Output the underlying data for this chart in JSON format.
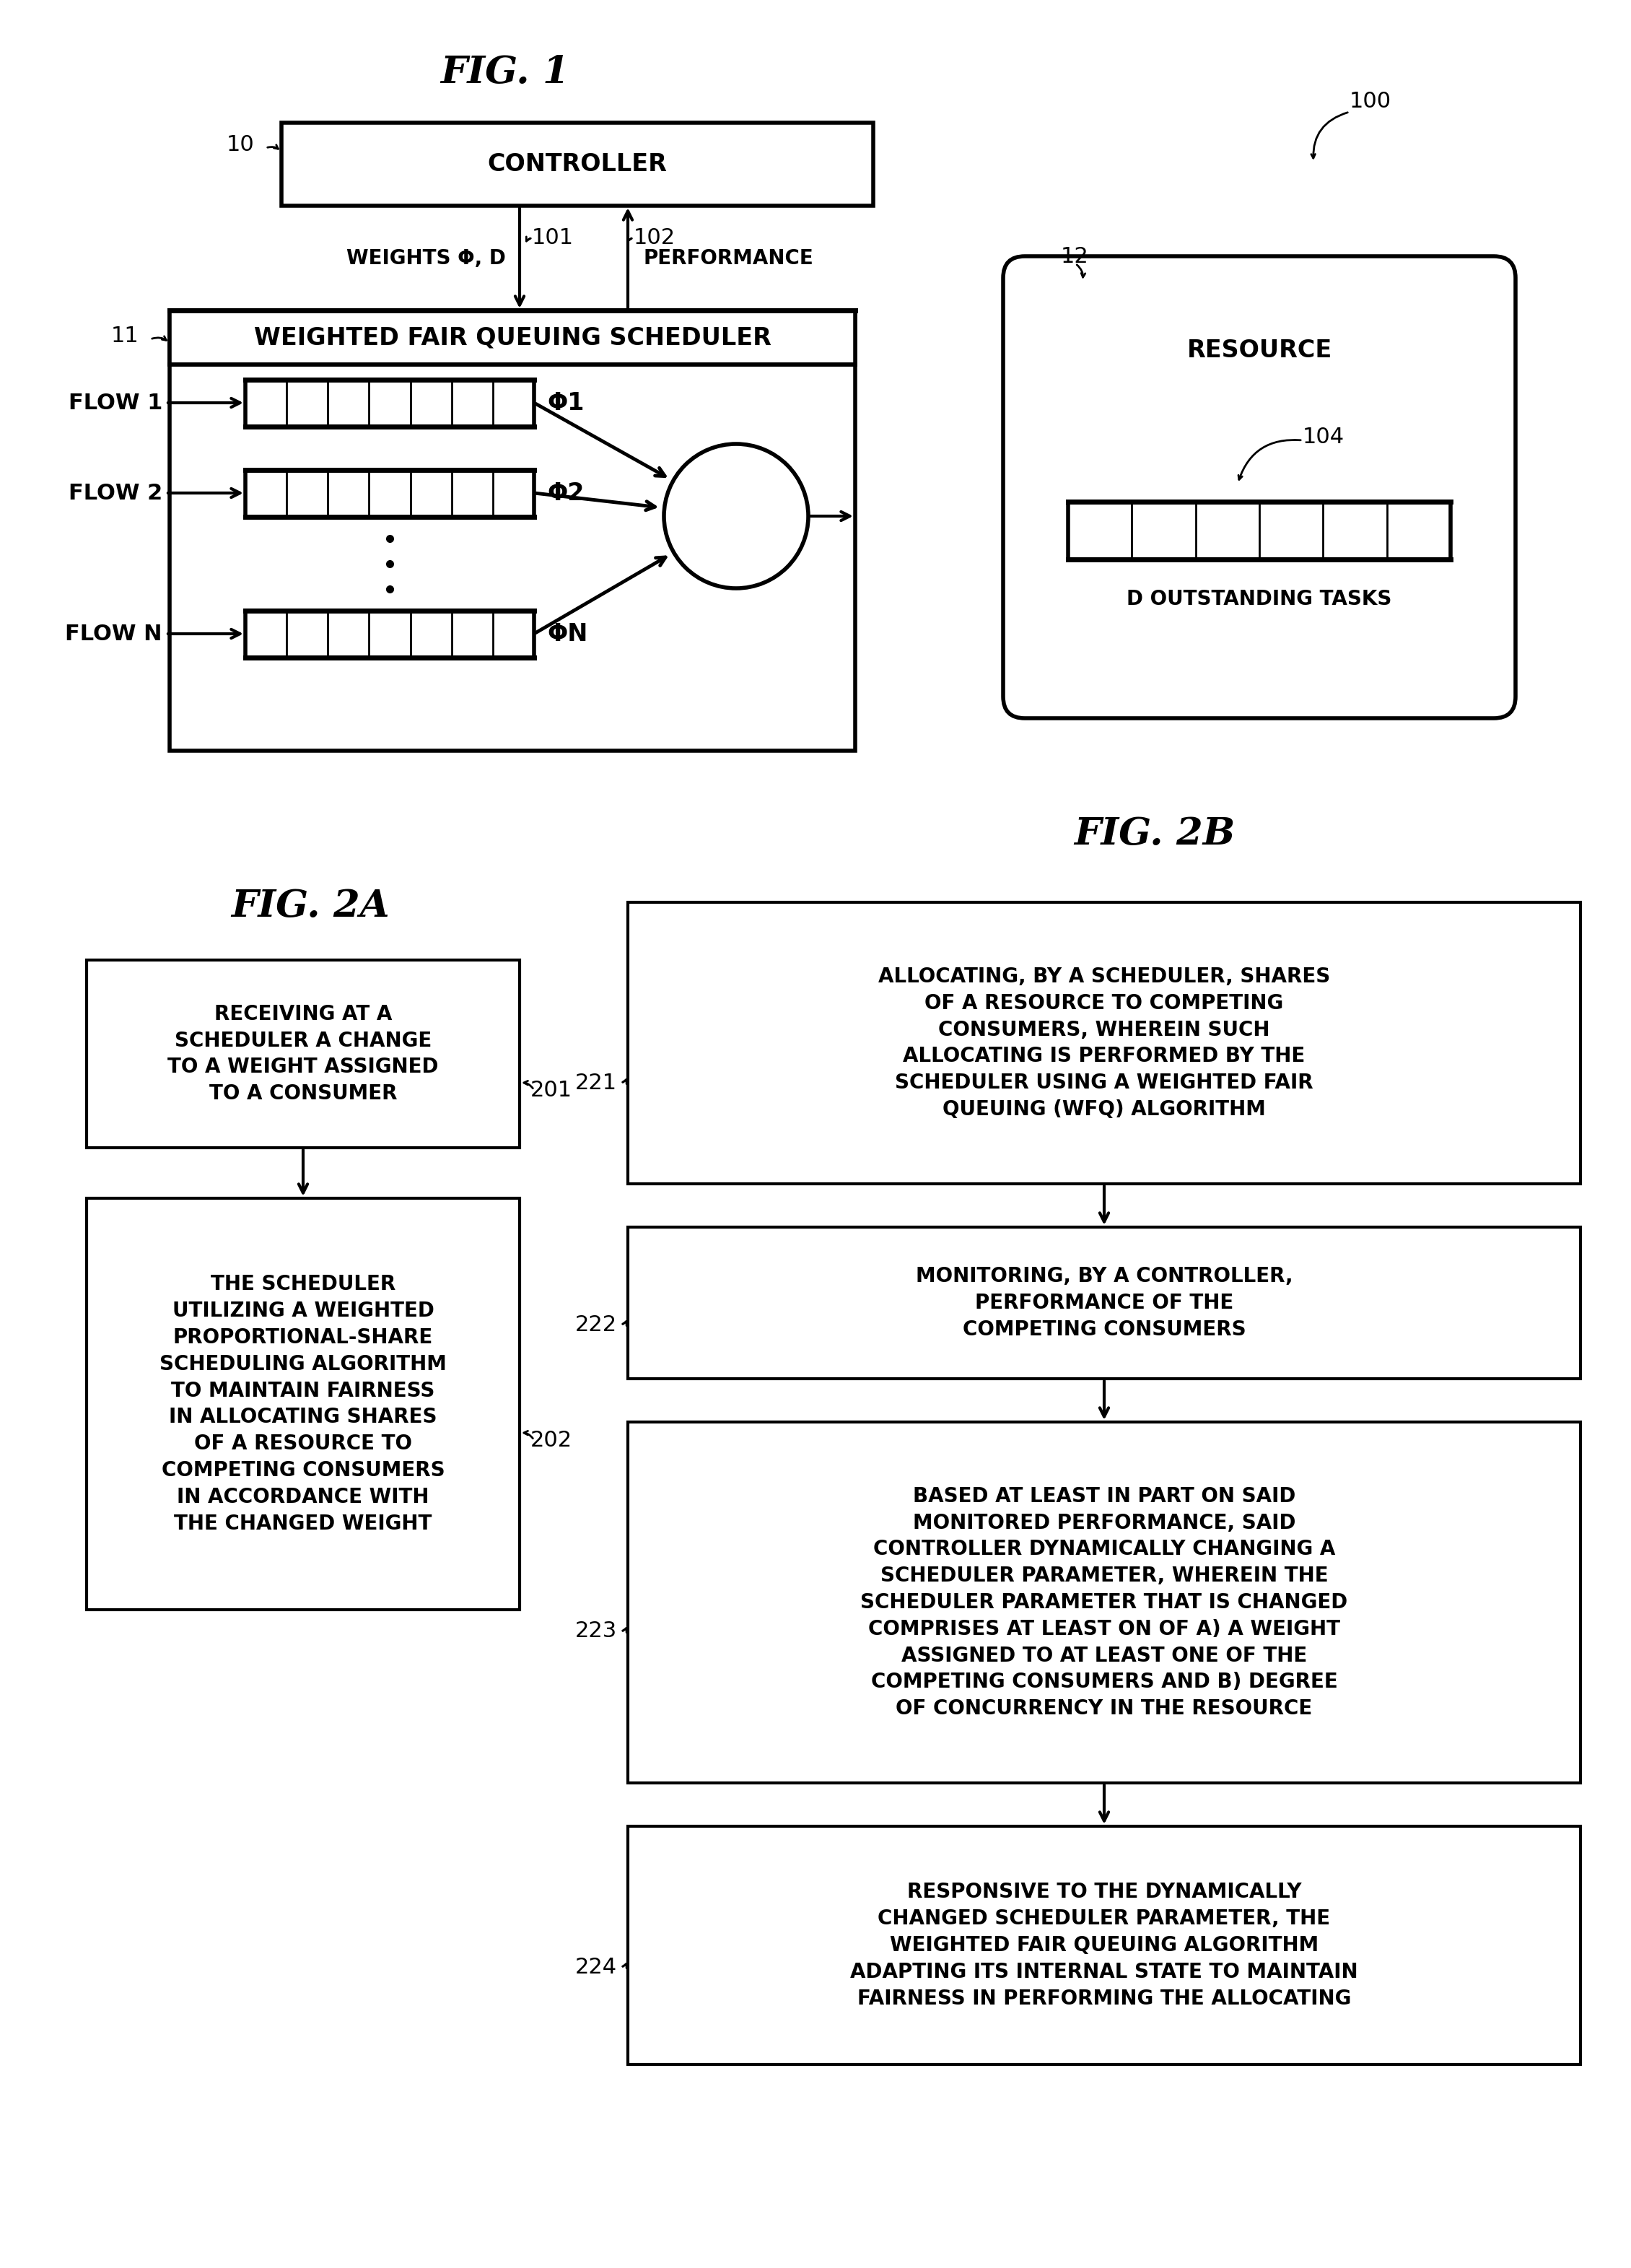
{
  "fig_title": "FIG. 1",
  "fig2a_title": "FIG. 2A",
  "fig2b_title": "FIG. 2B",
  "background_color": "#ffffff",
  "fig1": {
    "controller_label": "CONTROLLER",
    "controller_ref": "10",
    "system_ref": "100",
    "scheduler_label": "WEIGHTED FAIR QUEUING SCHEDULER",
    "scheduler_ref": "11",
    "resource_label": "RESOURCE",
    "resource_ref": "12",
    "flows": [
      "FLOW 1",
      "FLOW 2",
      "FLOW N"
    ],
    "phi_labels": [
      "Φ1",
      "Φ2",
      "ΦN"
    ],
    "weights_label": "WEIGHTS Φ, D",
    "performance_label": "PERFORMANCE",
    "ref_101": "101",
    "ref_102": "102",
    "ref_104": "104",
    "outstanding_label": "D OUTSTANDING TASKS"
  },
  "fig2a": {
    "box1_text": "RECEIVING AT A\nSCHEDULER A CHANGE\nTO A WEIGHT ASSIGNED\nTO A CONSUMER",
    "box1_ref": "201",
    "box2_text": "THE SCHEDULER\nUTILIZING A WEIGHTED\nPROPORTIONAL-SHARE\nSCHEDULING ALGORITHM\nTO MAINTAIN FAIRNESS\nIN ALLOCATING SHARES\nOF A RESOURCE TO\nCOMPETING CONSUMERS\nIN ACCORDANCE WITH\nTHE CHANGED WEIGHT",
    "box2_ref": "202"
  },
  "fig2b": {
    "box1_text": "ALLOCATING, BY A SCHEDULER, SHARES\nOF A RESOURCE TO COMPETING\nCONSUMERS, WHEREIN SUCH\nALLOCATING IS PERFORMED BY THE\nSCHEDULER USING A WEIGHTED FAIR\nQUEUING (WFQ) ALGORITHM",
    "box1_ref": "221",
    "box2_text": "MONITORING, BY A CONTROLLER,\nPERFORMANCE OF THE\nCOMPETING CONSUMERS",
    "box2_ref": "222",
    "box3_text": "BASED AT LEAST IN PART ON SAID\nMONITORED PERFORMANCE, SAID\nCONTROLLER DYNAMICALLY CHANGING A\nSCHEDULER PARAMETER, WHEREIN THE\nSCHEDULER PARAMETER THAT IS CHANGED\nCOMPRISES AT LEAST ON OF A) A WEIGHT\nASSIGNED TO AT LEAST ONE OF THE\nCOMPETING CONSUMERS AND B) DEGREE\nOF CONCURRENCY IN THE RESOURCE",
    "box3_ref": "223",
    "box4_text": "RESPONSIVE TO THE DYNAMICALLY\nCHANGED SCHEDULER PARAMETER, THE\nWEIGHTED FAIR QUEUING ALGORITHM\nADAPTING ITS INTERNAL STATE TO MAINTAIN\nFAIRNESS IN PERFORMING THE ALLOCATING",
    "box4_ref": "224"
  }
}
